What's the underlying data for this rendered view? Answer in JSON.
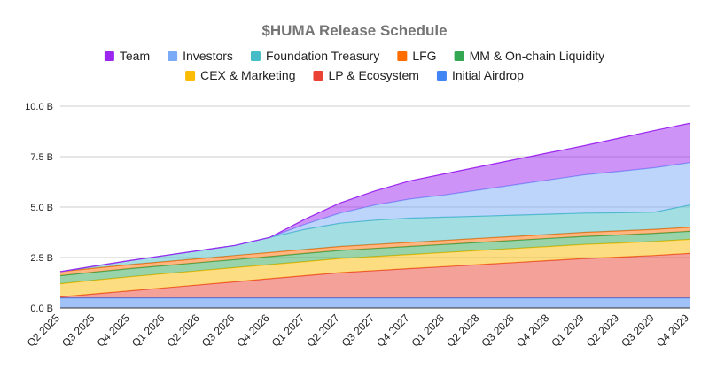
{
  "chart_data": {
    "type": "area",
    "stacked": true,
    "title": "$HUMA Release Schedule",
    "xlabel": "",
    "ylabel": "",
    "ylim": [
      0,
      10
    ],
    "yticks": [
      0,
      2.5,
      5,
      7.5,
      10
    ],
    "ytick_labels": [
      "0.0 B",
      "2.5 B",
      "5.0 B",
      "7.5 B",
      "10.0 B"
    ],
    "grid": true,
    "legend_position": "top",
    "categories": [
      "Q2 2025",
      "Q3 2025",
      "Q4 2025",
      "Q1 2026",
      "Q2 2026",
      "Q3 2026",
      "Q4 2026",
      "Q1 2027",
      "Q2 2027",
      "Q3 2027",
      "Q4 2027",
      "Q1 2028",
      "Q2 2028",
      "Q3 2028",
      "Q4 2028",
      "Q1 2029",
      "Q2 2029",
      "Q3 2029",
      "Q4 2029"
    ],
    "legend_order": [
      "Team",
      "Investors",
      "Foundation Treasury",
      "LFG",
      "MM & On-chain Liquidity",
      "CEX & Marketing",
      "LP & Ecosystem",
      "Initial Airdrop"
    ],
    "series": [
      {
        "name": "Initial Airdrop",
        "color": "#4285f4",
        "values": [
          0.5,
          0.5,
          0.5,
          0.5,
          0.5,
          0.5,
          0.5,
          0.5,
          0.5,
          0.5,
          0.5,
          0.5,
          0.5,
          0.5,
          0.5,
          0.5,
          0.5,
          0.5,
          0.5
        ]
      },
      {
        "name": "LP & Ecosystem",
        "color": "#ea4335",
        "values": [
          0.05,
          0.2,
          0.35,
          0.5,
          0.65,
          0.8,
          0.95,
          1.1,
          1.25,
          1.35,
          1.45,
          1.55,
          1.65,
          1.75,
          1.85,
          1.95,
          2.02,
          2.1,
          2.2
        ]
      },
      {
        "name": "CEX & Marketing",
        "color": "#fbbc04",
        "values": [
          0.65,
          0.68,
          0.7,
          0.7,
          0.7,
          0.7,
          0.7,
          0.7,
          0.7,
          0.7,
          0.7,
          0.7,
          0.7,
          0.7,
          0.7,
          0.7,
          0.7,
          0.7,
          0.7
        ]
      },
      {
        "name": "MM & On-chain Liquidity",
        "color": "#34a853",
        "values": [
          0.4,
          0.4,
          0.4,
          0.4,
          0.4,
          0.4,
          0.4,
          0.4,
          0.4,
          0.4,
          0.4,
          0.4,
          0.4,
          0.4,
          0.4,
          0.4,
          0.4,
          0.4,
          0.4
        ]
      },
      {
        "name": "LFG",
        "color": "#ff6d01",
        "values": [
          0.2,
          0.2,
          0.2,
          0.2,
          0.2,
          0.2,
          0.2,
          0.2,
          0.2,
          0.2,
          0.2,
          0.2,
          0.2,
          0.2,
          0.2,
          0.2,
          0.2,
          0.2,
          0.2
        ]
      },
      {
        "name": "Foundation Treasury",
        "color": "#46bdc6",
        "values": [
          0,
          0.1,
          0.2,
          0.3,
          0.4,
          0.5,
          0.75,
          1.0,
          1.15,
          1.2,
          1.2,
          1.15,
          1.1,
          1.05,
          1.0,
          0.95,
          0.9,
          0.85,
          1.1
        ]
      },
      {
        "name": "Investors",
        "color": "#7baaf7",
        "values": [
          0,
          0,
          0,
          0,
          0,
          0,
          0,
          0.25,
          0.5,
          0.75,
          0.95,
          1.1,
          1.3,
          1.5,
          1.7,
          1.9,
          2.05,
          2.2,
          2.1
        ]
      },
      {
        "name": "Team",
        "color": "#9c27f0",
        "values": [
          0,
          0,
          0,
          0,
          0,
          0,
          0,
          0.25,
          0.5,
          0.7,
          0.9,
          1.05,
          1.15,
          1.25,
          1.35,
          1.45,
          1.65,
          1.85,
          1.95
        ]
      }
    ]
  }
}
